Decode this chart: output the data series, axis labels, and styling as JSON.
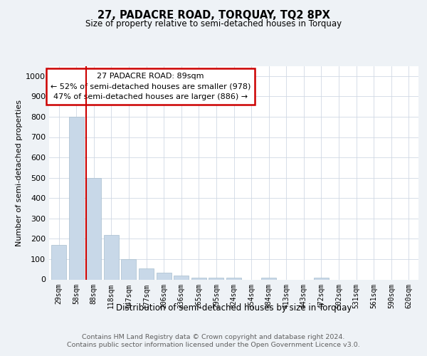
{
  "title": "27, PADACRE ROAD, TORQUAY, TQ2 8PX",
  "subtitle": "Size of property relative to semi-detached houses in Torquay",
  "xlabel": "Distribution of semi-detached houses by size in Torquay",
  "ylabel": "Number of semi-detached properties",
  "footer_line1": "Contains HM Land Registry data © Crown copyright and database right 2024.",
  "footer_line2": "Contains public sector information licensed under the Open Government Licence v3.0.",
  "categories": [
    "29sqm",
    "58sqm",
    "88sqm",
    "118sqm",
    "147sqm",
    "177sqm",
    "206sqm",
    "236sqm",
    "265sqm",
    "295sqm",
    "324sqm",
    "354sqm",
    "384sqm",
    "413sqm",
    "443sqm",
    "472sqm",
    "502sqm",
    "531sqm",
    "561sqm",
    "590sqm",
    "620sqm"
  ],
  "values": [
    170,
    800,
    500,
    220,
    100,
    55,
    35,
    18,
    10,
    8,
    10,
    0,
    8,
    0,
    0,
    10,
    0,
    0,
    0,
    0,
    0
  ],
  "bar_color": "#c8d8e8",
  "bar_edge_color": "#a8bece",
  "highlight_index": 2,
  "highlight_line_color": "#cc0000",
  "property_label": "27 PADACRE ROAD: 89sqm",
  "annotation_line1": "← 52% of semi-detached houses are smaller (978)",
  "annotation_line2": "47% of semi-detached houses are larger (886) →",
  "annotation_box_color": "#ffffff",
  "annotation_box_edge": "#cc0000",
  "ylim": [
    0,
    1050
  ],
  "yticks": [
    0,
    100,
    200,
    300,
    400,
    500,
    600,
    700,
    800,
    900,
    1000
  ],
  "bg_color": "#eef2f6",
  "plot_bg_color": "#ffffff",
  "grid_color": "#d0d8e4"
}
